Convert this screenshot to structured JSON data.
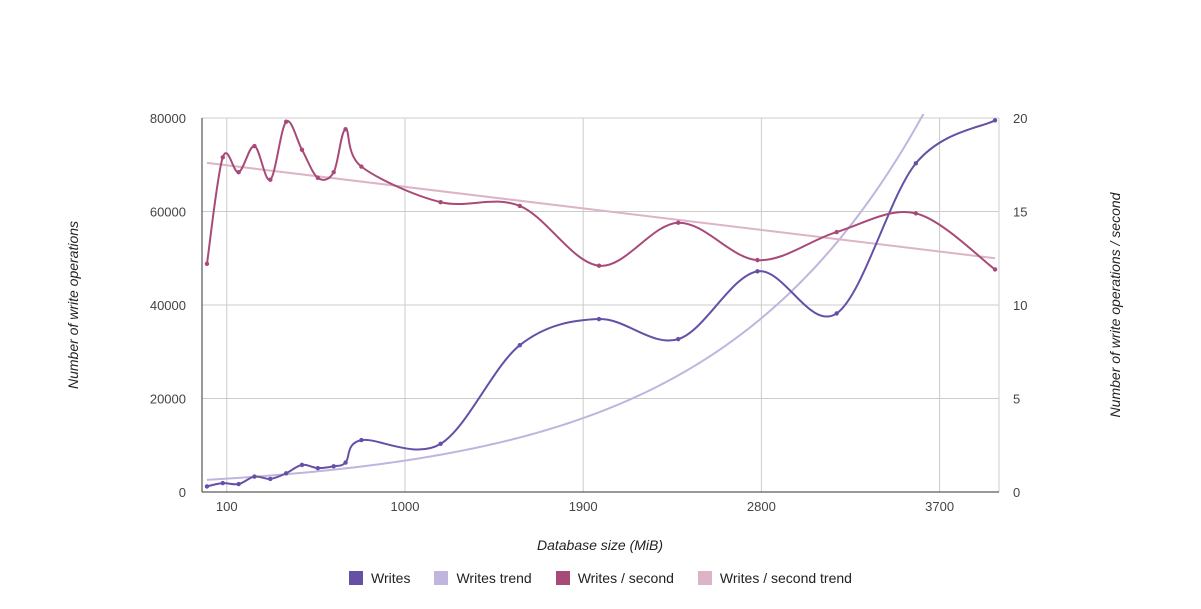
{
  "chart_data": {
    "type": "line",
    "title": "",
    "xlabel": "Database size (MiB)",
    "ylabel_left": "Number of write operations",
    "ylabel_right": "Number of write operations / second",
    "xlim": [
      -25,
      4000
    ],
    "ylim_left": [
      0,
      80000
    ],
    "ylim_right": [
      0,
      20
    ],
    "x_ticks": [
      100,
      1000,
      1900,
      2800,
      3700
    ],
    "y_ticks_left": [
      0,
      20000,
      40000,
      60000,
      80000
    ],
    "y_ticks_right": [
      0,
      5,
      10,
      15,
      20
    ],
    "grid": true,
    "series": [
      {
        "name": "Writes",
        "axis": "left",
        "color": "#6650a6",
        "x": [
          0,
          80,
          160,
          240,
          320,
          400,
          480,
          560,
          640,
          700,
          780,
          1180,
          1580,
          1980,
          2380,
          2780,
          3180,
          3580,
          3980
        ],
        "values": [
          1200,
          1900,
          1700,
          3300,
          2800,
          4000,
          5800,
          5100,
          5500,
          6300,
          11100,
          10300,
          31400,
          37000,
          32700,
          47200,
          38200,
          70300,
          79500
        ]
      },
      {
        "name": "Writes trend",
        "axis": "left",
        "color": "#bfb5df",
        "trend": "exponential",
        "a": 2600,
        "b": 0.00095
      },
      {
        "name": "Writes / second",
        "axis": "right",
        "color": "#a84a78",
        "x": [
          0,
          80,
          160,
          240,
          320,
          400,
          480,
          560,
          640,
          700,
          780,
          1180,
          1580,
          1980,
          2380,
          2780,
          3180,
          3580,
          3980
        ],
        "values": [
          12.2,
          17.9,
          17.1,
          18.5,
          16.7,
          19.8,
          18.3,
          16.8,
          17.1,
          19.4,
          17.4,
          15.5,
          15.3,
          12.1,
          14.4,
          12.4,
          13.9,
          14.9,
          11.9
        ]
      },
      {
        "name": "Writes / second trend",
        "axis": "right",
        "color": "#ddb3c8",
        "trend": "linear",
        "start": [
          0,
          17.6
        ],
        "end": [
          3980,
          12.5
        ]
      }
    ]
  }
}
